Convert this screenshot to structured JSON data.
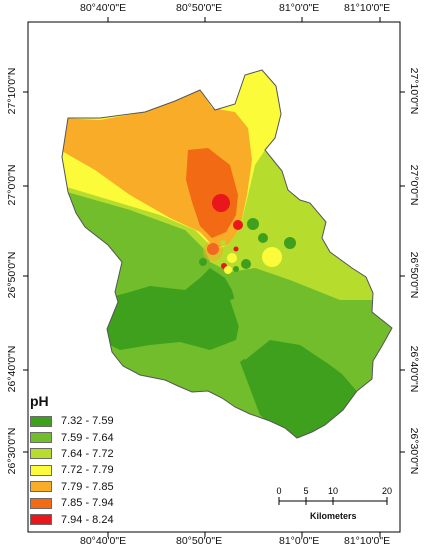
{
  "grid_labels": {
    "top": [
      "80°40'0\"E",
      "80°50'0\"E",
      "81°0'0\"E",
      "81°10'0\"E"
    ],
    "bottom": [
      "80°40'0\"E",
      "80°50'0\"E",
      "81°0'0\"E",
      "81°10'0\"E"
    ],
    "left": [
      "27°10'0\"N",
      "27°0'0\"N",
      "26°50'0\"N",
      "26°40'0\"N",
      "26°30'0\"N"
    ],
    "right": [
      "27°10'0\"N",
      "27°0'0\"N",
      "26°50'0\"N",
      "26°40'0\"N",
      "26°30'0\"N"
    ]
  },
  "legend": {
    "title": "pH",
    "classes": [
      {
        "label": "7.32 - 7.59",
        "color": "#3fa01e"
      },
      {
        "label": "7.59 - 7.64",
        "color": "#72bd2c"
      },
      {
        "label": "7.64 - 7.72",
        "color": "#b6dc2e"
      },
      {
        "label": "7.72 - 7.79",
        "color": "#fbfb3a"
      },
      {
        "label": "7.79 - 7.85",
        "color": "#f9ac27"
      },
      {
        "label": "7.85 - 7.94",
        "color": "#f26a14"
      },
      {
        "label": "7.94 - 8.24",
        "color": "#e9161b"
      }
    ]
  },
  "scale_bar": {
    "ticks": [
      "0",
      "5",
      "10",
      "20"
    ],
    "units": "Kilometers"
  }
}
